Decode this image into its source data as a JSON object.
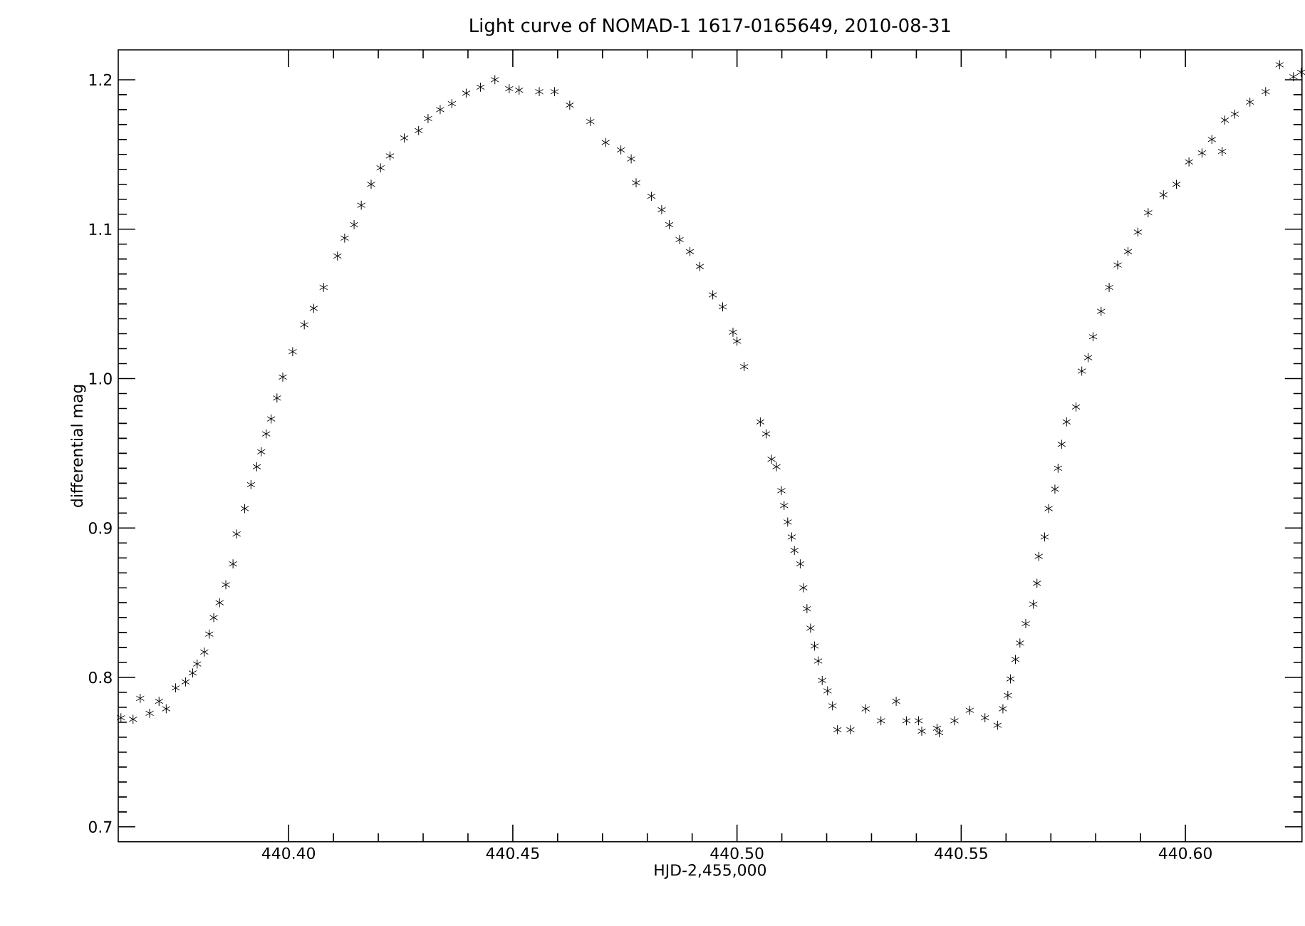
{
  "chart_data": {
    "type": "scatter",
    "title": "Light curve of NOMAD-1 1617-0165649,  2010-08-31",
    "xlabel": "HJD-2,455,000",
    "ylabel": "differential mag",
    "xlim": [
      440.362,
      440.626
    ],
    "ylim": [
      0.69,
      1.22
    ],
    "xticks": [
      {
        "value": 440.4,
        "label": "440.40"
      },
      {
        "value": 440.45,
        "label": "440.45"
      },
      {
        "value": 440.5,
        "label": "440.50"
      },
      {
        "value": 440.55,
        "label": "440.55"
      },
      {
        "value": 440.6,
        "label": "440.60"
      }
    ],
    "yticks": [
      0.7,
      0.8,
      0.9,
      {
        "value": 1.0,
        "label": "1.0"
      },
      1.1,
      1.2
    ],
    "grid": false,
    "marker": "cross",
    "series": [
      {
        "color": "#000000",
        "x": [
          440.3626,
          440.3653,
          440.3669,
          440.369,
          440.3711,
          440.3727,
          440.3748,
          440.377,
          440.3786,
          440.3796,
          440.3812,
          440.3823,
          440.3833,
          440.3846,
          440.386,
          440.3876,
          440.3884,
          440.3902,
          440.3916,
          440.3929,
          440.3939,
          440.395,
          440.3961,
          440.3974,
          440.3987,
          440.4009,
          440.4035,
          440.4056,
          440.4078,
          440.4109,
          440.4125,
          440.4146,
          440.4162,
          440.4184,
          440.4205,
          440.4226,
          440.4258,
          440.429,
          440.4311,
          440.4338,
          440.4364,
          440.4396,
          440.4428,
          440.446,
          440.4492,
          440.4514,
          440.4559,
          440.4593,
          440.4627,
          440.4673,
          440.4707,
          440.4741,
          440.4764,
          440.4775,
          440.4809,
          440.4832,
          440.4849,
          440.4872,
          440.4895,
          440.4917,
          440.4946,
          440.4968,
          440.4991,
          440.5,
          440.5016,
          440.5052,
          440.5065,
          440.5077,
          440.5088,
          440.5099,
          440.5105,
          440.5113,
          440.5122,
          440.5128,
          440.5141,
          440.5148,
          440.5156,
          440.5164,
          440.5173,
          440.5181,
          440.519,
          440.5202,
          440.5213,
          440.5224,
          440.5253,
          440.5287,
          440.5321,
          440.5355,
          440.5378,
          440.5405,
          440.5412,
          440.5446,
          440.5451,
          440.5485,
          440.5519,
          440.5553,
          440.5581,
          440.5593,
          440.5604,
          440.561,
          440.5621,
          440.5631,
          440.5644,
          440.5661,
          440.5669,
          440.5673,
          440.5686,
          440.5695,
          440.5709,
          440.5716,
          440.5724,
          440.5735,
          440.5756,
          440.5769,
          440.5783,
          440.5794,
          440.5812,
          440.583,
          440.5849,
          440.5872,
          440.5894,
          440.5917,
          440.5951,
          440.598,
          440.6008,
          440.6037,
          440.6059,
          440.6082,
          440.6088,
          440.611,
          440.6144,
          440.6179,
          440.621,
          440.6241,
          440.6258
        ],
        "values": [
          0.773,
          0.772,
          0.786,
          0.776,
          0.784,
          0.779,
          0.793,
          0.797,
          0.803,
          0.809,
          0.817,
          0.829,
          0.84,
          0.85,
          0.862,
          0.876,
          0.896,
          0.913,
          0.929,
          0.941,
          0.951,
          0.963,
          0.973,
          0.987,
          1.001,
          1.018,
          1.036,
          1.047,
          1.061,
          1.082,
          1.094,
          1.103,
          1.116,
          1.13,
          1.141,
          1.149,
          1.161,
          1.166,
          1.174,
          1.18,
          1.184,
          1.191,
          1.195,
          1.2,
          1.194,
          1.193,
          1.192,
          1.192,
          1.183,
          1.172,
          1.158,
          1.153,
          1.147,
          1.131,
          1.122,
          1.113,
          1.103,
          1.093,
          1.085,
          1.075,
          1.056,
          1.048,
          1.031,
          1.025,
          1.008,
          0.971,
          0.963,
          0.946,
          0.941,
          0.925,
          0.915,
          0.904,
          0.894,
          0.885,
          0.876,
          0.86,
          0.846,
          0.833,
          0.821,
          0.811,
          0.798,
          0.791,
          0.781,
          0.765,
          0.765,
          0.779,
          0.771,
          0.784,
          0.771,
          0.771,
          0.764,
          0.766,
          0.763,
          0.771,
          0.778,
          0.773,
          0.768,
          0.779,
          0.788,
          0.799,
          0.812,
          0.823,
          0.836,
          0.849,
          0.863,
          0.881,
          0.894,
          0.913,
          0.926,
          0.94,
          0.956,
          0.971,
          0.981,
          1.005,
          1.014,
          1.028,
          1.045,
          1.061,
          1.076,
          1.085,
          1.098,
          1.111,
          1.123,
          1.13,
          1.145,
          1.151,
          1.16,
          1.152,
          1.173,
          1.177,
          1.185,
          1.192,
          1.21,
          1.202,
          1.205
        ]
      }
    ]
  }
}
